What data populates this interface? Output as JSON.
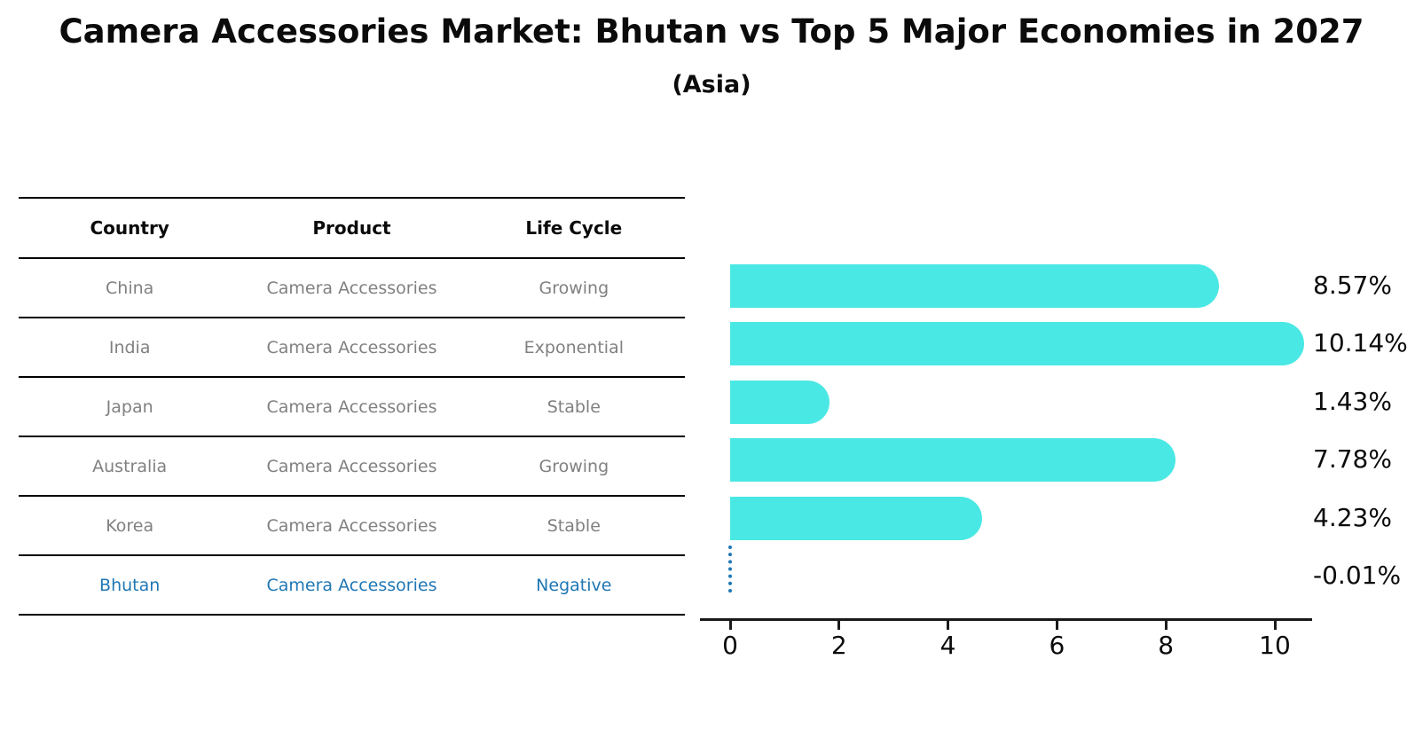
{
  "title": "Camera Accessories Market: Bhutan vs Top 5 Major Economies in 2027",
  "subtitle": "(Asia)",
  "colors": {
    "bar": "#4ae8e4",
    "highlight": "#1f77b4",
    "table_text": "#808080",
    "axis": "#1a1a1a",
    "text": "#0b0b0b"
  },
  "table": {
    "headers": [
      "Country",
      "Product",
      "Life Cycle"
    ],
    "rows": [
      {
        "country": "China",
        "product": "Camera Accessories",
        "life_cycle": "Growing",
        "highlight": false
      },
      {
        "country": "India",
        "product": "Camera Accessories",
        "life_cycle": "Exponential",
        "highlight": false
      },
      {
        "country": "Japan",
        "product": "Camera Accessories",
        "life_cycle": "Stable",
        "highlight": false
      },
      {
        "country": "Australia",
        "product": "Camera Accessories",
        "life_cycle": "Growing",
        "highlight": false
      },
      {
        "country": "Korea",
        "product": "Camera Accessories",
        "life_cycle": "Stable",
        "highlight": false
      },
      {
        "country": "Bhutan",
        "product": "Camera Accessories",
        "life_cycle": "Negative",
        "highlight": true
      }
    ]
  },
  "chart_data": {
    "type": "bar",
    "orientation": "horizontal",
    "title": "Camera Accessories Market: Bhutan vs Top 5 Major Economies in 2027 (Asia)",
    "categories": [
      "China",
      "India",
      "Japan",
      "Australia",
      "Korea",
      "Bhutan"
    ],
    "values": [
      8.57,
      10.14,
      1.43,
      7.78,
      4.23,
      -0.01
    ],
    "labels": [
      "8.57%",
      "10.14%",
      "1.43%",
      "7.78%",
      "4.23%",
      "-0.01%"
    ],
    "xticks": [
      0,
      2,
      4,
      6,
      8,
      10
    ],
    "xlim": [
      -0.55,
      10.7
    ],
    "xlabel": "",
    "ylabel": "",
    "grid": false,
    "legend": "none",
    "bar_color": "#4ae8e4",
    "highlight_index": 5,
    "highlight_color": "#1f77b4",
    "highlight_style": "dotted-zero-line"
  }
}
